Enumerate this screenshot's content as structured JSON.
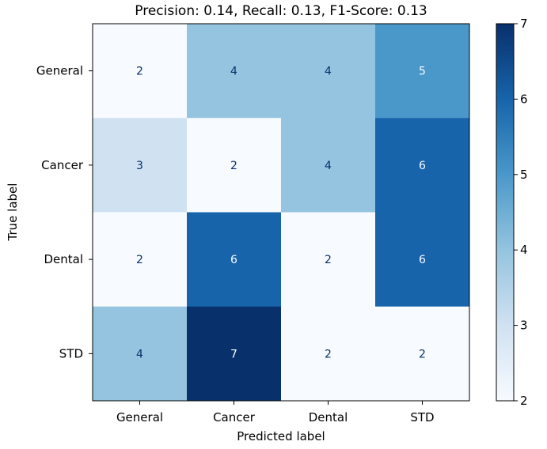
{
  "chart_data": {
    "type": "heatmap",
    "title": "Precision: 0.14, Recall: 0.13, F1-Score: 0.13",
    "xlabel": "Predicted label",
    "ylabel": "True label",
    "x_categories": [
      "General",
      "Cancer",
      "Dental",
      "STD"
    ],
    "y_categories": [
      "General",
      "Cancer",
      "Dental",
      "STD"
    ],
    "values": [
      [
        2,
        4,
        4,
        5
      ],
      [
        3,
        2,
        4,
        6
      ],
      [
        2,
        6,
        2,
        6
      ],
      [
        4,
        7,
        2,
        2
      ]
    ],
    "vmin": 2,
    "vmax": 7,
    "colormap": "Blues",
    "colorbar_ticks": [
      2,
      3,
      4,
      5,
      6,
      7
    ],
    "colors": {
      "light_text": "#f7fbff",
      "dark_text": "#08306b"
    }
  }
}
